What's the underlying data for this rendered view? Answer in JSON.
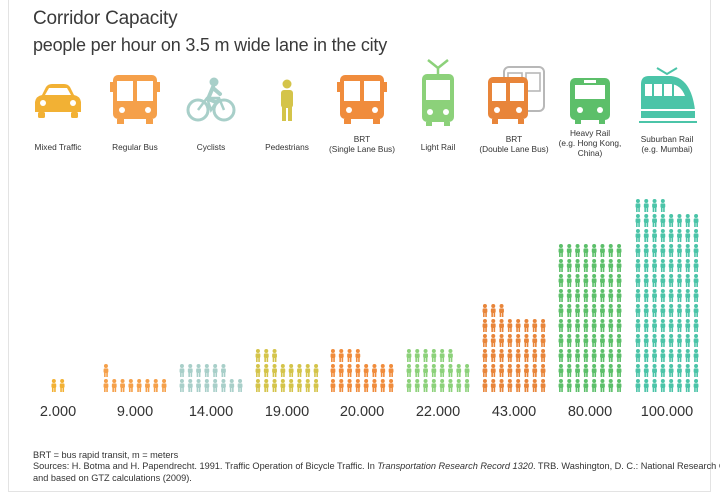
{
  "chart_data": {
    "type": "bar",
    "title": "Corridor Capacity",
    "subtitle": "people per hour on 3.5 m wide lane in the city",
    "categories": [
      "Mixed Traffic",
      "Regular Bus",
      "Cyclists",
      "Pedestrians",
      "BRT\n(Single Lane Bus)",
      "Light Rail",
      "BRT\n(Double Lane Bus)",
      "Heavy Rail\n(e.g. Hong Kong,\nChina)",
      "Suburban Rail\n(e.g. Mumbai)"
    ],
    "values": [
      2000,
      9000,
      14000,
      19000,
      20000,
      22000,
      43000,
      80000,
      100000
    ],
    "value_labels": [
      "2.000",
      "9.000",
      "14.000",
      "19.000",
      "20.000",
      "22.000",
      "43.000",
      "80.000",
      "100.000"
    ],
    "unit_per_person_icon": 1000,
    "colors": [
      "#f2b134",
      "#f5a04a",
      "#a8cfc9",
      "#d4c44a",
      "#f08c3c",
      "#8cd17a",
      "#e8853a",
      "#5cbf6a",
      "#4bc4a8"
    ],
    "icons": [
      "car-icon",
      "bus-icon",
      "bicycle-icon",
      "pedestrian-icon",
      "bus-icon",
      "tram-icon",
      "double-bus-icon",
      "metro-icon",
      "train-icon"
    ],
    "xlabel": "",
    "ylabel": ""
  },
  "footnote": "BRT = bus rapid transit, m = meters",
  "sources_prefix": "Sources: H. Botma and H. Papendrecht. 1991. Traffic Operation of Bicycle Traffic. In ",
  "sources_italic": "Transportation Research Record 1320",
  "sources_suffix": ". TRB. Washington, D. C.: National Research Council,",
  "sources_line2": "and based on GTZ calculations (2009)."
}
